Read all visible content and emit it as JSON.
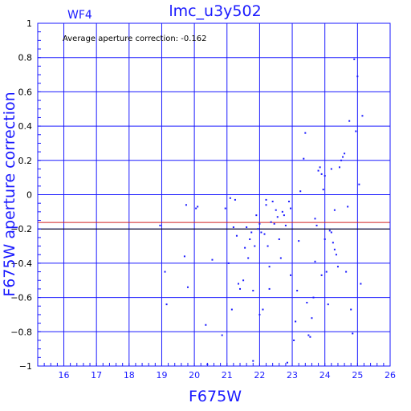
{
  "chart_data": {
    "type": "scatter",
    "title": "lmc_u3y502",
    "chip_label": "WF4",
    "annotation": "Average aperture correction: -0.162",
    "xlabel": "F675W",
    "ylabel": "F675W aperture correction",
    "xlim": [
      15.2,
      26.0
    ],
    "ylim": [
      -1.0,
      1.0
    ],
    "x_ticks": [
      16,
      17,
      18,
      19,
      20,
      21,
      22,
      23,
      24,
      25,
      26
    ],
    "y_ticks": [
      1,
      0.8,
      0.6,
      0.4,
      0.2,
      0,
      -0.2,
      -0.4,
      -0.6,
      -0.8,
      -1
    ],
    "x_tick_labels": [
      "16",
      "17",
      "18",
      "19",
      "20",
      "21",
      "22",
      "23",
      "24",
      "25",
      "26"
    ],
    "y_tick_labels": [
      "1",
      "0.8",
      "0.6",
      "0.4",
      "0.2",
      "0",
      "−0.2",
      "−0.4",
      "−0.6",
      "−0.8",
      "−1"
    ],
    "grid": true,
    "hlines": [
      {
        "y": -0.162,
        "color": "#d02020"
      },
      {
        "y": -0.2,
        "color": "#000000"
      }
    ],
    "colors": {
      "axes": "#1a1aff",
      "grid": "#1a1aff",
      "points": "#1a1aff",
      "average_line": "#d02020",
      "reference_line": "#000000"
    },
    "points": [
      [
        18.95,
        -0.18
      ],
      [
        19.1,
        -0.45
      ],
      [
        19.15,
        -0.64
      ],
      [
        19.7,
        -0.36
      ],
      [
        19.75,
        -0.06
      ],
      [
        19.8,
        -0.54
      ],
      [
        20.05,
        -0.08
      ],
      [
        20.1,
        -0.07
      ],
      [
        20.35,
        -0.76
      ],
      [
        20.4,
        -0.99
      ],
      [
        20.55,
        -0.38
      ],
      [
        20.85,
        -0.82
      ],
      [
        20.95,
        -0.08
      ],
      [
        21.05,
        -0.4
      ],
      [
        21.1,
        -0.02
      ],
      [
        21.15,
        -0.67
      ],
      [
        21.2,
        -0.19
      ],
      [
        21.25,
        -0.03
      ],
      [
        21.3,
        -0.24
      ],
      [
        21.35,
        -0.52
      ],
      [
        21.4,
        -0.55
      ],
      [
        21.5,
        -0.5
      ],
      [
        21.55,
        -0.31
      ],
      [
        21.6,
        -0.19
      ],
      [
        21.65,
        -0.37
      ],
      [
        21.7,
        -0.26
      ],
      [
        21.75,
        -0.22
      ],
      [
        21.8,
        -0.97
      ],
      [
        21.8,
        -0.56
      ],
      [
        21.85,
        -0.3
      ],
      [
        21.9,
        -0.12
      ],
      [
        21.95,
        -0.2
      ],
      [
        22.0,
        -0.7
      ],
      [
        22.0,
        -0.17
      ],
      [
        22.05,
        -0.22
      ],
      [
        22.1,
        -0.67
      ],
      [
        22.15,
        -0.23
      ],
      [
        22.2,
        -0.03
      ],
      [
        22.2,
        -0.06
      ],
      [
        22.25,
        -0.3
      ],
      [
        22.3,
        -0.42
      ],
      [
        22.3,
        -0.55
      ],
      [
        22.35,
        -0.16
      ],
      [
        22.4,
        -0.04
      ],
      [
        22.45,
        -0.17
      ],
      [
        22.5,
        -0.09
      ],
      [
        22.55,
        -0.13
      ],
      [
        22.6,
        -0.26
      ],
      [
        22.65,
        -0.37
      ],
      [
        22.7,
        -0.1
      ],
      [
        22.75,
        -0.12
      ],
      [
        22.8,
        -0.18
      ],
      [
        22.9,
        -0.04
      ],
      [
        22.95,
        -0.08
      ],
      [
        22.85,
        -0.98
      ],
      [
        22.95,
        -0.47
      ],
      [
        23.05,
        -0.85
      ],
      [
        23.1,
        -0.74
      ],
      [
        23.15,
        -0.56
      ],
      [
        23.2,
        -0.27
      ],
      [
        23.25,
        0.02
      ],
      [
        23.35,
        0.21
      ],
      [
        23.4,
        0.36
      ],
      [
        23.45,
        -0.63
      ],
      [
        23.5,
        -0.82
      ],
      [
        23.55,
        -0.83
      ],
      [
        23.6,
        -0.72
      ],
      [
        23.65,
        -0.6
      ],
      [
        23.7,
        -0.39
      ],
      [
        23.75,
        -0.18
      ],
      [
        23.8,
        0.14
      ],
      [
        23.85,
        0.16
      ],
      [
        23.9,
        0.12
      ],
      [
        23.95,
        0.03
      ],
      [
        24.0,
        0.11
      ],
      [
        24.05,
        -0.45
      ],
      [
        24.1,
        -0.64
      ],
      [
        24.15,
        -0.21
      ],
      [
        24.2,
        -0.22
      ],
      [
        24.25,
        -0.28
      ],
      [
        24.3,
        -0.32
      ],
      [
        24.35,
        -0.35
      ],
      [
        24.4,
        -0.42
      ],
      [
        24.45,
        0.16
      ],
      [
        24.5,
        0.2
      ],
      [
        24.55,
        0.22
      ],
      [
        24.6,
        0.24
      ],
      [
        24.65,
        -0.45
      ],
      [
        24.7,
        -0.07
      ],
      [
        24.75,
        0.43
      ],
      [
        24.8,
        -0.67
      ],
      [
        24.85,
        -0.81
      ],
      [
        24.9,
        0.79
      ],
      [
        24.95,
        0.37
      ],
      [
        25.0,
        0.69
      ],
      [
        25.05,
        0.06
      ],
      [
        25.1,
        -0.52
      ],
      [
        25.15,
        0.46
      ],
      [
        23.9,
        -0.47
      ],
      [
        24.0,
        -0.26
      ],
      [
        24.2,
        0.15
      ],
      [
        23.7,
        -0.14
      ],
      [
        24.3,
        -0.09
      ]
    ]
  }
}
